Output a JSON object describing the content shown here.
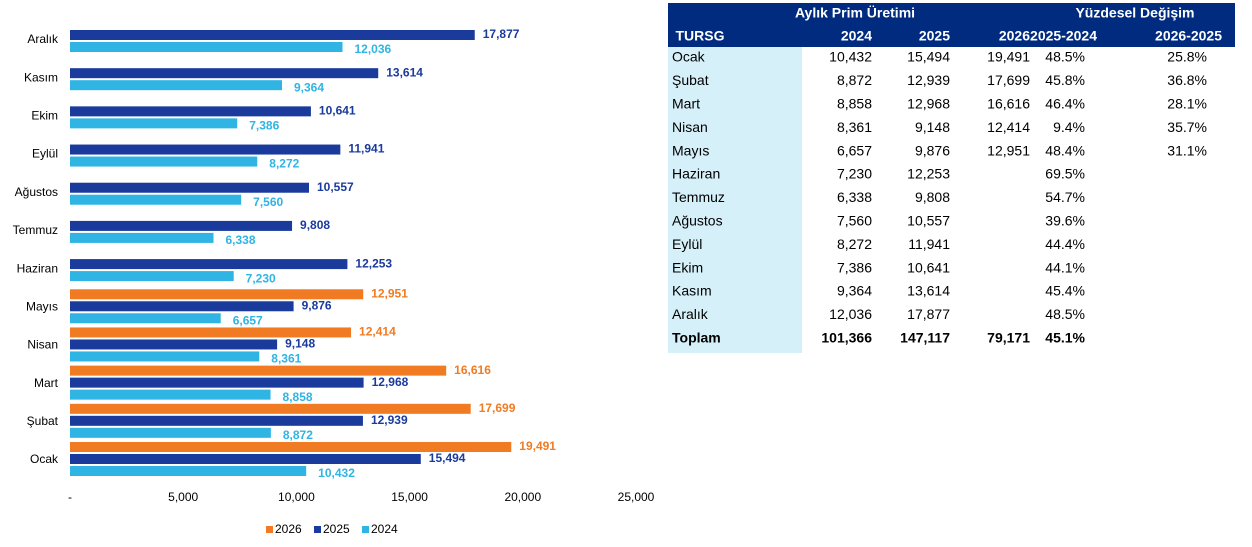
{
  "chart_data": {
    "type": "hbar",
    "categories": [
      "Ocak",
      "Şubat",
      "Mart",
      "Nisan",
      "Mayıs",
      "Haziran",
      "Temmuz",
      "Ağustos",
      "Eylül",
      "Ekim",
      "Kasım",
      "Aralık"
    ],
    "series": [
      {
        "name": "2026",
        "color": "#f07b22",
        "values": [
          19491,
          17699,
          16616,
          12414,
          12951,
          null,
          null,
          null,
          null,
          null,
          null,
          null
        ],
        "value_labels": [
          "19,491",
          "17,699",
          "16,616",
          "12,414",
          "12,951",
          null,
          null,
          null,
          null,
          null,
          null,
          null
        ]
      },
      {
        "name": "2025",
        "color": "#1a3a9c",
        "values": [
          15494,
          12939,
          12968,
          9148,
          9876,
          12253,
          9808,
          10557,
          11941,
          10641,
          13614,
          17877
        ],
        "value_labels": [
          "15,494",
          "12,939",
          "12,968",
          "9,148",
          "9,876",
          "12,253",
          "9,808",
          "10,557",
          "11,941",
          "10,641",
          "13,614",
          "17,877"
        ]
      },
      {
        "name": "2024",
        "color": "#2fb4e4",
        "values": [
          10432,
          8872,
          8858,
          8361,
          6657,
          7230,
          6338,
          7560,
          8272,
          7386,
          9364,
          12036
        ],
        "value_labels": [
          "10,432",
          "8,872",
          "8,858",
          "8,361",
          "6,657",
          "7,230",
          "6,338",
          "7,560",
          "8,272",
          "7,386",
          "9,364",
          "12,036"
        ]
      }
    ],
    "xlim": [
      0,
      25000
    ],
    "xticks": [
      {
        "value": 0,
        "label": "-"
      },
      {
        "value": 5000,
        "label": "5,000"
      },
      {
        "value": 10000,
        "label": "10,000"
      },
      {
        "value": 15000,
        "label": "15,000"
      },
      {
        "value": 20000,
        "label": "20,000"
      },
      {
        "value": 25000,
        "label": "25,000"
      }
    ],
    "legend": "bottom"
  },
  "table": {
    "group_headers": [
      "Aylık Prim Üretimi",
      "Yüzdesel Değişim"
    ],
    "columns": [
      "TURSG",
      "2024",
      "2025",
      "2026",
      "2025-2024",
      "2026-2025"
    ],
    "rows": [
      {
        "label": "Ocak",
        "y2024": "10,432",
        "y2025": "15,494",
        "y2026": "19,491",
        "ch1": "48.5%",
        "ch2": "25.8%"
      },
      {
        "label": "Şubat",
        "y2024": "8,872",
        "y2025": "12,939",
        "y2026": "17,699",
        "ch1": "45.8%",
        "ch2": "36.8%"
      },
      {
        "label": "Mart",
        "y2024": "8,858",
        "y2025": "12,968",
        "y2026": "16,616",
        "ch1": "46.4%",
        "ch2": "28.1%"
      },
      {
        "label": "Nisan",
        "y2024": "8,361",
        "y2025": "9,148",
        "y2026": "12,414",
        "ch1": "9.4%",
        "ch2": "35.7%"
      },
      {
        "label": "Mayıs",
        "y2024": "6,657",
        "y2025": "9,876",
        "y2026": "12,951",
        "ch1": "48.4%",
        "ch2": "31.1%"
      },
      {
        "label": "Haziran",
        "y2024": "7,230",
        "y2025": "12,253",
        "ch1": "69.5%"
      },
      {
        "label": "Temmuz",
        "y2024": "6,338",
        "y2025": "9,808",
        "ch1": "54.7%"
      },
      {
        "label": "Ağustos",
        "y2024": "7,560",
        "y2025": "10,557",
        "ch1": "39.6%"
      },
      {
        "label": "Eylül",
        "y2024": "8,272",
        "y2025": "11,941",
        "ch1": "44.4%"
      },
      {
        "label": "Ekim",
        "y2024": "7,386",
        "y2025": "10,641",
        "ch1": "44.1%"
      },
      {
        "label": "Kasım",
        "y2024": "9,364",
        "y2025": "13,614",
        "ch1": "45.4%"
      },
      {
        "label": "Aralık",
        "y2024": "12,036",
        "y2025": "17,877",
        "ch1": "48.5%"
      }
    ],
    "total": {
      "label": "Toplam",
      "y2024": "101,366",
      "y2025": "147,117",
      "y2026": "79,171",
      "ch1": "45.1%"
    }
  }
}
